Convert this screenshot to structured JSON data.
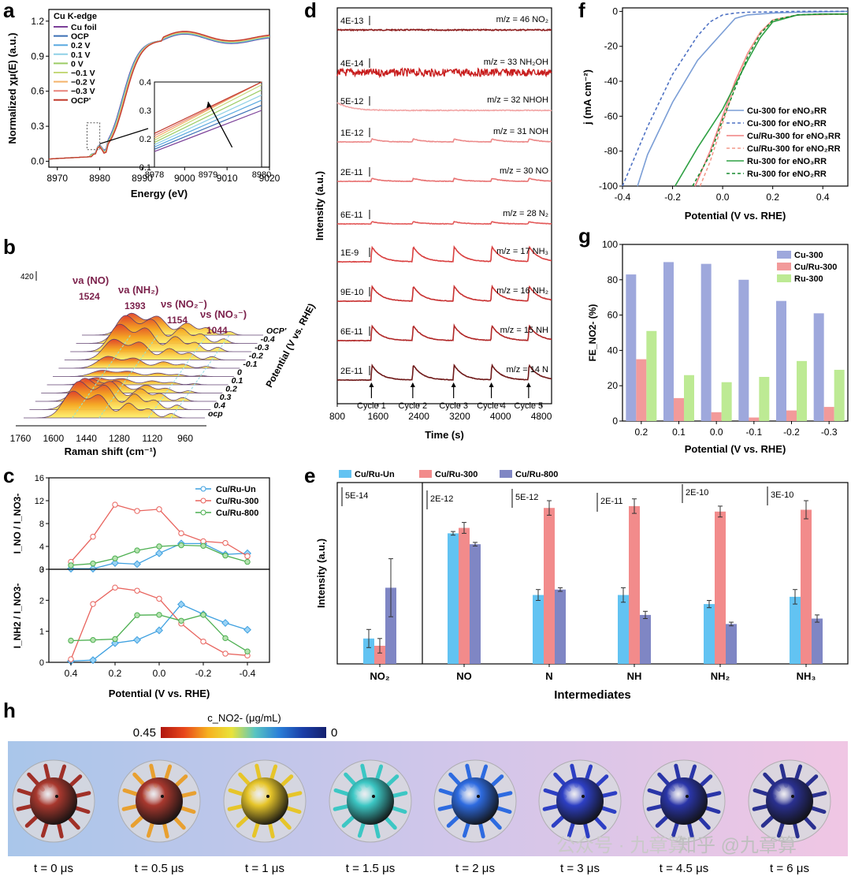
{
  "figure": {
    "panel_letters": [
      "a",
      "b",
      "c",
      "d",
      "e",
      "f",
      "g",
      "h"
    ],
    "watermark": "公众号 · 九章算",
    "watermark2": "知乎 @九章算"
  },
  "chart_data": [
    {
      "id": "a",
      "type": "line",
      "legend_title": "Cu K-edge",
      "legend": [
        "Cu foil",
        "OCP",
        "0.2 V",
        "0.1 V",
        "0 V",
        "−0.1 V",
        "−0.2 V",
        "−0.3 V",
        "OCP'"
      ],
      "colors": [
        "#7b3f98",
        "#3a6fb5",
        "#5aa9e0",
        "#8fd0e6",
        "#9ccc65",
        "#c5d97a",
        "#f4b36a",
        "#e8847c",
        "#c0392b"
      ],
      "xlabel": "Energy (eV)",
      "ylabel": "Normalized χμ(E) (a.u.)",
      "xlim": [
        8968,
        9020
      ],
      "ylim": [
        -0.05,
        1.3
      ],
      "xticks": [
        8970,
        8980,
        8990,
        9000,
        9010,
        9020
      ],
      "yticks": [
        0.0,
        0.3,
        0.6,
        0.9,
        1.2
      ],
      "inset": {
        "xlim": [
          8978,
          8980
        ],
        "ylim": [
          0.1,
          0.4
        ],
        "xticks": [
          8978,
          8979,
          8980
        ],
        "yticks": [
          0.1,
          0.2,
          0.3,
          0.4
        ]
      }
    },
    {
      "id": "b",
      "type": "area",
      "xlabel": "Raman shift (cm⁻¹)",
      "ylabel": "Potential (V vs. RHE)",
      "scale_label": "420",
      "xticks": [
        1760,
        1600,
        1440,
        1280,
        1120,
        960
      ],
      "potentials": [
        "ocp",
        "0.4",
        "0.3",
        "0.2",
        "0.1",
        "0",
        "-0.1",
        "-0.2",
        "-0.3",
        "-0.4",
        "OCP'"
      ],
      "peaks": [
        {
          "label": "νa (NO)",
          "value": "1524"
        },
        {
          "label": "νa (NH₂)",
          "value": "1393"
        },
        {
          "label": "νs (NO₂⁻)",
          "value": "1154"
        },
        {
          "label": "νs (NO₃⁻)",
          "value": "1044"
        }
      ]
    },
    {
      "id": "c",
      "type": "line",
      "xlabel": "Potential (V vs. RHE)",
      "x": [
        0.4,
        0.3,
        0.2,
        0.1,
        0.0,
        -0.1,
        -0.2,
        -0.3,
        -0.4
      ],
      "xticks": [
        "0.4",
        "0.2",
        "0.0",
        "-0.2",
        "-0.4"
      ],
      "top": {
        "ylabel": "I_NO / I_NO3-",
        "ylim": [
          0,
          16
        ],
        "yticks": [
          0,
          4,
          8,
          12,
          16
        ],
        "series": [
          {
            "name": "Cu/Ru-Un",
            "color": "#3ea0e0",
            "values": [
              0.1,
              0.1,
              1.1,
              0.9,
              2.8,
              4.5,
              4.5,
              2.6,
              2.8
            ]
          },
          {
            "name": "Cu/Ru-300",
            "color": "#e8635d",
            "values": [
              1.3,
              5.7,
              11.3,
              10.2,
              10.5,
              6.3,
              4.9,
              4.6,
              2.3
            ]
          },
          {
            "name": "Cu/Ru-800",
            "color": "#4caf50",
            "values": [
              0.7,
              1.0,
              1.9,
              3.3,
              4.0,
              4.2,
              4.1,
              2.4,
              1.3
            ]
          }
        ]
      },
      "bottom": {
        "ylabel": "I_NH2 / I_NO3-",
        "ylim": [
          0,
          3
        ],
        "yticks": [
          0,
          1,
          2,
          3
        ],
        "series": [
          {
            "name": "Cu/Ru-Un",
            "color": "#3ea0e0",
            "values": [
              0.04,
              0.07,
              0.62,
              0.72,
              1.03,
              1.87,
              1.55,
              1.27,
              1.05
            ]
          },
          {
            "name": "Cu/Ru-300",
            "color": "#e8635d",
            "values": [
              0.1,
              1.88,
              2.41,
              2.31,
              2.05,
              1.25,
              0.67,
              0.28,
              0.22
            ]
          },
          {
            "name": "Cu/Ru-800",
            "color": "#4caf50",
            "values": [
              0.7,
              0.72,
              0.75,
              1.52,
              1.53,
              1.34,
              1.53,
              0.78,
              0.35
            ]
          }
        ]
      }
    },
    {
      "id": "d",
      "type": "line",
      "xlabel": "Time (s)",
      "ylabel": "Intensity (a.u.)",
      "xlim": [
        800,
        5000
      ],
      "xticks": [
        800,
        1600,
        2400,
        3200,
        4000,
        4800
      ],
      "cycles": [
        "Cycle 1",
        "Cycle 2",
        "Cycle 3",
        "Cycle 4",
        "Cycle 5"
      ],
      "cycle_times": [
        1470,
        2280,
        3080,
        3820,
        4550
      ],
      "traces": [
        {
          "scale": "4E-13",
          "label": "m/z = 46 NO₂",
          "color": "#8b1a1a"
        },
        {
          "scale": "4E-14",
          "label": "m/z = 33 NH₂OH",
          "color": "#c81e1e"
        },
        {
          "scale": "5E-12",
          "label": "m/z = 32 NHOH",
          "color": "#f2a6a6"
        },
        {
          "scale": "1E-12",
          "label": "m/z = 31 NOH",
          "color": "#ec8a8a"
        },
        {
          "scale": "2E-11",
          "label": "m/z = 30 NO",
          "color": "#e87272"
        },
        {
          "scale": "6E-11",
          "label": "m/z = 28 N₂",
          "color": "#e35a5a"
        },
        {
          "scale": "1E-9",
          "label": "m/z = 17 NH₃",
          "color": "#d94040"
        },
        {
          "scale": "9E-10",
          "label": "m/z = 16 NH₂",
          "color": "#c83030"
        },
        {
          "scale": "6E-11",
          "label": "m/z = 15 NH",
          "color": "#b02626"
        },
        {
          "scale": "2E-11",
          "label": "m/z = 14 N",
          "color": "#6e1818"
        }
      ]
    },
    {
      "id": "e",
      "type": "bar",
      "xlabel": "Intermediates",
      "ylabel": "Intensity (a.u.)",
      "categories": [
        "NO₂",
        "NO",
        "N",
        "NH",
        "NH₂",
        "NH₃"
      ],
      "scale_labels": [
        "5E-14",
        "2E-12",
        "5E-12",
        "2E-11",
        "2E-10",
        "3E-10"
      ],
      "series": [
        {
          "name": "Cu/Ru-Un",
          "color": "#62c3f2",
          "values": [
            0.14,
            0.72,
            0.38,
            0.38,
            0.33,
            0.37
          ],
          "errors": [
            0.05,
            0.01,
            0.03,
            0.04,
            0.02,
            0.04
          ]
        },
        {
          "name": "Cu/Ru-300",
          "color": "#f28b8b",
          "values": [
            0.1,
            0.75,
            0.86,
            0.87,
            0.84,
            0.85
          ],
          "errors": [
            0.04,
            0.03,
            0.04,
            0.04,
            0.03,
            0.05
          ]
        },
        {
          "name": "Cu/Ru-800",
          "color": "#7f86c4",
          "values": [
            0.42,
            0.66,
            0.41,
            0.27,
            0.22,
            0.25
          ],
          "errors": [
            0.16,
            0.01,
            0.01,
            0.02,
            0.01,
            0.02
          ]
        }
      ]
    },
    {
      "id": "f",
      "type": "line",
      "xlabel": "Potential (V vs. RHE)",
      "ylabel": "j (mA cm⁻²)",
      "xlim": [
        -0.4,
        0.5
      ],
      "ylim": [
        -100,
        2
      ],
      "xticks": [
        -0.4,
        -0.2,
        0.0,
        0.2,
        0.4
      ],
      "yticks": [
        0,
        -20,
        -40,
        -60,
        -80,
        -100
      ],
      "series": [
        {
          "name": "Cu-300 for eNO₃RR",
          "color": "#7b9ed6",
          "dash": false,
          "x": [
            -0.34,
            -0.3,
            -0.2,
            -0.1,
            -0.05,
            0.0,
            0.05,
            0.1,
            0.2,
            0.3,
            0.5
          ],
          "y": [
            -100,
            -82,
            -52,
            -28,
            -20,
            -12,
            -4,
            -2,
            -1,
            -0.5,
            0
          ]
        },
        {
          "name": "Cu-300 for eNO₂RR",
          "color": "#4f72c4",
          "dash": true,
          "x": [
            -0.4,
            -0.3,
            -0.2,
            -0.1,
            -0.05,
            0.0,
            0.05,
            0.1,
            0.2,
            0.3,
            0.5
          ],
          "y": [
            -100,
            -66,
            -36,
            -14,
            -6,
            -2,
            -1,
            -0.5,
            -0.3,
            0,
            0
          ]
        },
        {
          "name": "Cu/Ru-300 for eNO₃RR",
          "color": "#f08080",
          "dash": false,
          "x": [
            -0.11,
            -0.05,
            0.0,
            0.05,
            0.1,
            0.15,
            0.2,
            0.3,
            0.4,
            0.5
          ],
          "y": [
            -100,
            -80,
            -60,
            -40,
            -24,
            -12,
            -5,
            -2,
            -1.8,
            -1.5
          ]
        },
        {
          "name": "Cu/Ru-300 for eNO₂RR",
          "color": "#f49a8a",
          "dash": true,
          "x": [
            -0.09,
            -0.05,
            0.0,
            0.05,
            0.1,
            0.15,
            0.2,
            0.3,
            0.4,
            0.5
          ],
          "y": [
            -100,
            -86,
            -64,
            -42,
            -24,
            -12,
            -5,
            -2,
            -1.8,
            -1.5
          ]
        },
        {
          "name": "Ru-300 for eNO₃RR",
          "color": "#2ea043",
          "dash": false,
          "x": [
            -0.19,
            -0.1,
            0.0,
            0.05,
            0.1,
            0.15,
            0.2,
            0.3,
            0.4,
            0.5
          ],
          "y": [
            -100,
            -78,
            -56,
            -42,
            -28,
            -15,
            -6,
            -2,
            -1.5,
            -1.5
          ]
        },
        {
          "name": "Ru-300 for eNO₂RR",
          "color": "#178a2e",
          "dash": true,
          "x": [
            -0.12,
            -0.05,
            0.0,
            0.05,
            0.1,
            0.15,
            0.2,
            0.3,
            0.4,
            0.5
          ],
          "y": [
            -100,
            -82,
            -62,
            -44,
            -26,
            -13,
            -5,
            -2,
            -1.5,
            -1.5
          ]
        }
      ]
    },
    {
      "id": "g",
      "type": "bar",
      "xlabel": "Potential (V vs. RHE)",
      "ylabel": "FE_NO2- (%)",
      "categories": [
        "0.2",
        "0.1",
        "0.0",
        "-0.1",
        "-0.2",
        "-0.3"
      ],
      "ylim": [
        0,
        100
      ],
      "yticks": [
        0,
        20,
        40,
        60,
        80,
        100
      ],
      "series": [
        {
          "name": "Cu-300",
          "color": "#9ea8dc",
          "values": [
            83,
            90,
            89,
            80,
            68,
            61
          ]
        },
        {
          "name": "Cu/Ru-300",
          "color": "#f29a9a",
          "values": [
            35,
            13,
            5,
            2,
            6,
            8
          ]
        },
        {
          "name": "Ru-300",
          "color": "#bdea94",
          "values": [
            51,
            26,
            22,
            25,
            34,
            29
          ]
        }
      ]
    },
    {
      "id": "h",
      "type": "other",
      "colorbar_label": "c_NO2- (μg/mL)",
      "colorbar_max": "0.45",
      "colorbar_min": "0",
      "times": [
        "t = 0 μs",
        "t = 0.5 μs",
        "t = 1 μs",
        "t = 1.5 μs",
        "t = 2 μs",
        "t = 3 μs",
        "t = 4.5 μs",
        "t = 6 μs"
      ],
      "sphere_colors": [
        "#a8382e",
        "#a8382e",
        "#e6c52a",
        "#3cc7c4",
        "#2e6be0",
        "#2d3fc4",
        "#2a35a8",
        "#2a3090"
      ]
    }
  ]
}
